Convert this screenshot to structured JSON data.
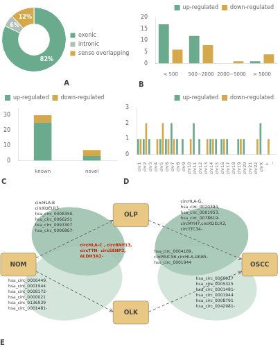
{
  "chart_data": [
    {
      "type": "pie",
      "title": "A",
      "categories": [
        "exonic",
        "intronic",
        "sense overlapping"
      ],
      "values": [
        82,
        6,
        12
      ],
      "value_labels": [
        "82%",
        "6%",
        "12%"
      ],
      "colors": [
        "#6aab8e",
        "#b0bfb8",
        "#d4a84b"
      ],
      "data_labels": true,
      "legend": "right"
    },
    {
      "type": "bar",
      "title": "B",
      "categories": [
        "< 500",
        "500~2000",
        "2000~5000",
        "> 5000"
      ],
      "series": [
        {
          "name": "up-regulated",
          "color": "#6aab8e",
          "values": [
            17,
            12,
            0,
            1
          ]
        },
        {
          "name": "down-regulated",
          "color": "#d4a84b",
          "values": [
            6,
            8,
            1,
            4
          ]
        }
      ],
      "ylim": [
        0,
        20
      ],
      "yticks": [
        0,
        5,
        10,
        15,
        20
      ],
      "grid": false,
      "legend": "upper right"
    },
    {
      "type": "bar",
      "title": "C",
      "stacked": true,
      "categories": [
        "known",
        "novel"
      ],
      "series": [
        {
          "name": "up-regulated",
          "color": "#6aab8e",
          "values": [
            25,
            3
          ]
        },
        {
          "name": "down-regulated",
          "color": "#d4a84b",
          "values": [
            5,
            4
          ]
        }
      ],
      "ylim": [
        0,
        35
      ],
      "yticks": [
        0,
        10,
        20,
        30
      ],
      "grid": false,
      "legend": "upper left"
    },
    {
      "type": "bar",
      "title": "D",
      "categories": [
        "chr1",
        "chr2",
        "chr3",
        "chr4",
        "chr5",
        "chr6",
        "chr7",
        "chr8",
        "chr9",
        "chr10",
        "chr11",
        "chr12",
        "chr13",
        "chr14",
        "chr15",
        "chr16",
        "chr17",
        "chr18",
        "chr19",
        "chr20",
        "chr21",
        "chr22",
        "chrX",
        "+",
        "-"
      ],
      "series": [
        {
          "name": "up-regulated",
          "color": "#6aab8e",
          "values": [
            1,
            1,
            1,
            0,
            1,
            1,
            2,
            1,
            1,
            0,
            2,
            1,
            0,
            1,
            1,
            1,
            1,
            0,
            1,
            1,
            0,
            0,
            2,
            0,
            0
          ]
        },
        {
          "name": "down-regulated",
          "color": "#d4a84b",
          "values": [
            1,
            2,
            0,
            1,
            2,
            1,
            1,
            0,
            0,
            1,
            0,
            0,
            1,
            1,
            0,
            1,
            0,
            0,
            1,
            0,
            0,
            1,
            0,
            1,
            0
          ]
        }
      ],
      "ylim": [
        0,
        3
      ],
      "yticks": [
        0,
        1,
        2,
        3
      ],
      "grid": false,
      "legend": "upper right"
    },
    {
      "type": "diagram",
      "title": "E",
      "colors": [
        "#7aaa90",
        "#b0cfc0",
        "#7aaa90",
        "#b0cfc0"
      ],
      "color": "#e8c882",
      "annotations": [
        {
          "text": "NOM",
          "color": "#444444"
        },
        {
          "text": "OLP",
          "color": "#444444"
        },
        {
          "text": "OLK",
          "color": "#444444"
        },
        {
          "text": "OSCC",
          "color": "#444444"
        },
        {
          "text": "circHLA-B\ncircKDELR3\nhsa_circ_0008350-\nhsa_circ_0066251\nhsa_circ_0093307\nhsa_circ_0006867-",
          "color": "#333333"
        },
        {
          "text": "circHLA-C , circRNF13,\ncircTTN- circSENP2,\nALDH3A2-",
          "color": "#cc2200"
        },
        {
          "text": "hsa_circ_0006449,\nhsa_circ_0001944\nhsa_circ_0008172-\nhsa_circ_0000021\nhsa_circ_0136939\nhsa_circ_0001481-",
          "color": "#333333"
        },
        {
          "text": "hsa_circ_0004189,\ncircMUC5B,circHLA-DRB5-\nhsa_circ_0001944",
          "color": "#333333"
        },
        {
          "text": "circHLA-G,\nhsa_circ_0020394,\nhsa_circ_0001953,\nhsa_circ_0078619-\ncircMYH7,circKDELR3,\ncircTTC34-",
          "color": "#333333"
        },
        {
          "text": "hsa_circ_0060927\nhsa_circ_0005325\nhsa_circ_0001481-\nhsa_circ_0001944\nhsa_circ_0008791\nhsa_circ_0042981-",
          "color": "#333333"
        }
      ]
    }
  ]
}
